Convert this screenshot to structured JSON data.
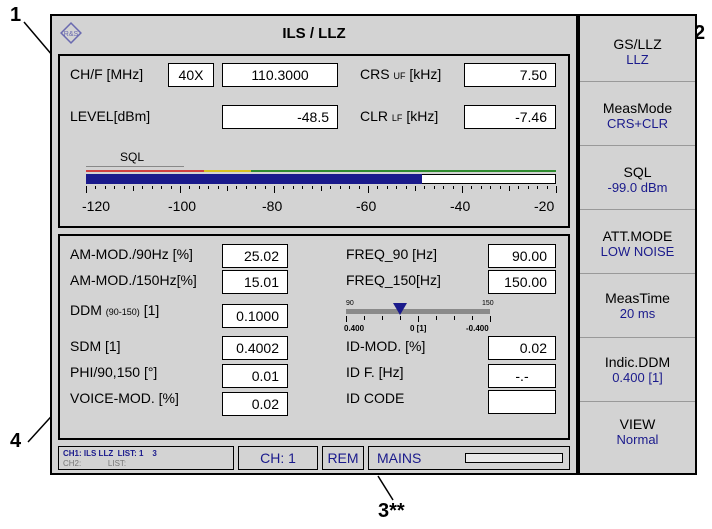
{
  "callouts": {
    "c1": "1",
    "c2": "2",
    "c3": "3**",
    "c4": "4"
  },
  "header": {
    "title": "ILS / LLZ",
    "logo": "R&S"
  },
  "top": {
    "chf_label": "CH/F [MHz]",
    "chf_channel": "40X",
    "chf_freq": "110.3000",
    "crs_label": "CRS",
    "crs_sub": "UF",
    "crs_unit": "[kHz]",
    "crs_value": "7.50",
    "level_label": "LEVEL[dBm]",
    "level_value": "-48.5",
    "clr_label": "CLR",
    "clr_sub": "LF",
    "clr_unit": "[kHz]",
    "clr_value": "-7.46",
    "sql_label": "SQL",
    "scale": [
      "-120",
      "-100",
      "-80",
      "-60",
      "-40",
      "-20"
    ],
    "level_bar_value_dbm": -48.5,
    "sql_value_dbm": -99.0
  },
  "bottom": {
    "am90_label": "AM-MOD./90Hz [%]",
    "am90_value": "25.02",
    "am150_label": "AM-MOD./150Hz[%]",
    "am150_value": "15.01",
    "ddm_label": "DDM",
    "ddm_sub": "(90-150)",
    "ddm_unit": "[1]",
    "ddm_value": "0.1000",
    "sdm_label": "SDM [1]",
    "sdm_value": "0.4002",
    "phi_label": "PHI/90,150 [°]",
    "phi_value": "0.01",
    "voice_label": "VOICE-MOD. [%]",
    "voice_value": "0.02",
    "freq90_label": "FREQ_90 [Hz]",
    "freq90_value": "90.00",
    "freq150_label": "FREQ_150[Hz]",
    "freq150_value": "150.00",
    "ddm_scale_top_left": "90",
    "ddm_scale_top_right": "150",
    "ddm_scale_left": "0.400",
    "ddm_scale_mid": "0 [1]",
    "ddm_scale_right": "-0.400",
    "ddm_indicator_value": 0.1,
    "idmod_label": "ID-MOD. [%]",
    "idmod_value": "0.02",
    "idf_label": "ID F. [Hz]",
    "idf_value": "-.-",
    "idcode_label": "ID CODE",
    "idcode_value": ""
  },
  "status": {
    "ch1_line": "CH1: ILS LLZ  LIST: 1    3",
    "ch2_line": "CH2:            LIST:",
    "ch": "CH: 1",
    "rem": "REM",
    "mains": "MAINS"
  },
  "softkeys": [
    {
      "title": "GS/LLZ",
      "value": "LLZ"
    },
    {
      "title": "MeasMode",
      "value": "CRS+CLR"
    },
    {
      "title": "SQL",
      "value": "-99.0  dBm"
    },
    {
      "title": "ATT.MODE",
      "value": "LOW NOISE"
    },
    {
      "title": "MeasTime",
      "value": "20   ms"
    },
    {
      "title": "Indic.DDM",
      "value": "0.400 [1]"
    },
    {
      "title": "VIEW",
      "value": "Normal"
    }
  ],
  "colors": {
    "bar_fill": "#1a1a8c",
    "bar_green": "#2e8b2e",
    "bar_red": "#d04040",
    "bar_yellow": "#d8c020",
    "screen_bg": "#d3d3d3"
  }
}
